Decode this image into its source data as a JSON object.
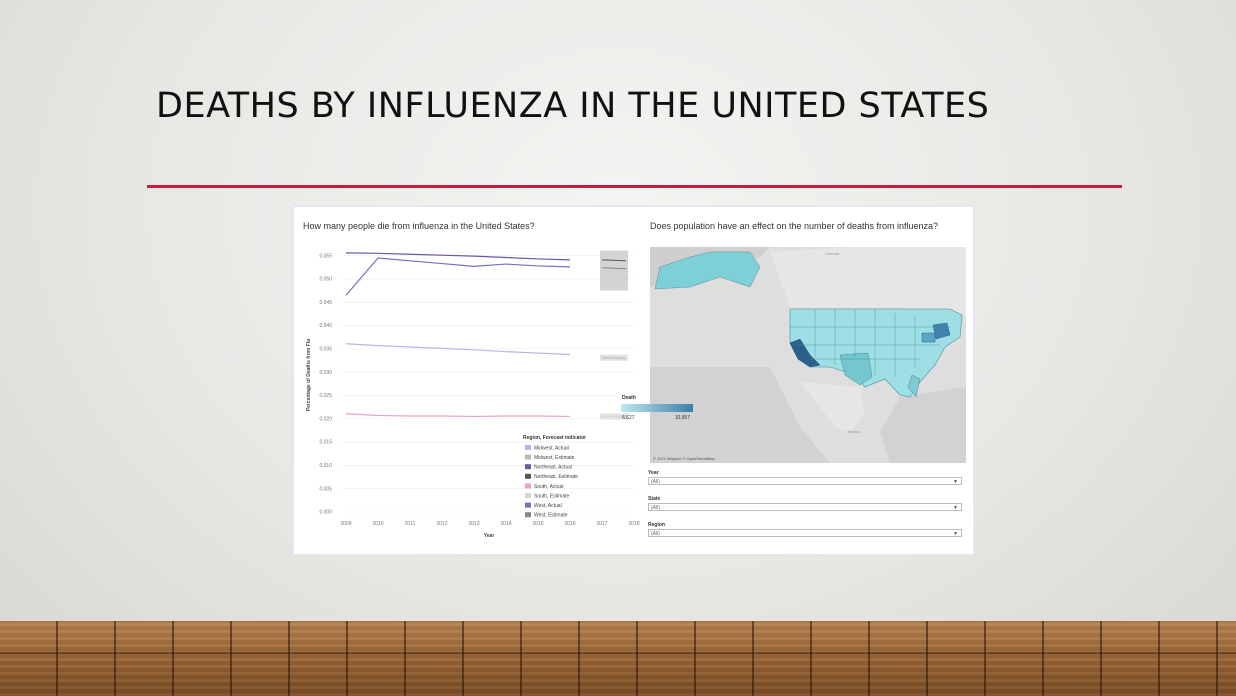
{
  "slide": {
    "title": "DEATHS BY INFLUENZA IN THE UNITED STATES",
    "accent_color": "#c31e3d"
  },
  "dashboard": {
    "line_chart_title": "How many people die from influenza in the United States?",
    "map_title": "Does population have an effect on the number of deaths from influenza?",
    "map_attribution": "© 2021 Mapbox © OpenStreetMap",
    "map_labels": {
      "canada": "Canada",
      "mexico": "Mexico"
    },
    "death_legend": {
      "title": "Death",
      "min": "6,627",
      "max": "10,957",
      "low_color": "#bfe8ee",
      "high_color": "#3a7fa8"
    },
    "filters": [
      {
        "label": "Year",
        "value": "(All)"
      },
      {
        "label": "State",
        "value": "(All)"
      },
      {
        "label": "Region",
        "value": "(All)"
      }
    ]
  },
  "chart_data": {
    "type": "line",
    "title": "How many people die from influenza in the United States?",
    "xlabel": "Year",
    "ylabel": "Percentage of Deaths from Flu",
    "x": [
      2009,
      2010,
      2011,
      2012,
      2013,
      2014,
      2015,
      2016
    ],
    "x_ticks": [
      "2009",
      "2010",
      "2011",
      "2012",
      "2013",
      "2014",
      "2015",
      "2016",
      "2017",
      "2018"
    ],
    "y_ticks": [
      "0.055",
      "0.050",
      "0.045",
      "0.040",
      "0.035",
      "0.030",
      "0.025",
      "0.020",
      "0.015",
      "0.010",
      "0.005",
      "0.000"
    ],
    "ylim": [
      0,
      0.056
    ],
    "legend_title": "Region, Forecast indicator",
    "legend": [
      {
        "name": "Midwest, Actual",
        "color": "#b9b4e6"
      },
      {
        "name": "Midwest, Estimate",
        "color": "#b9b9b9"
      },
      {
        "name": "Northeast, Actual",
        "color": "#6f54a3"
      },
      {
        "name": "Northeast, Estimate",
        "color": "#555555"
      },
      {
        "name": "South, Actual",
        "color": "#e5a2cd"
      },
      {
        "name": "South, Estimate",
        "color": "#d6d6d6"
      },
      {
        "name": "West, Actual",
        "color": "#7b6cc4"
      },
      {
        "name": "West, Estimate",
        "color": "#888888"
      }
    ],
    "series": [
      {
        "name": "Northeast, Actual",
        "color": "#6f54a3",
        "values": [
          0.0556,
          0.0555,
          0.0553,
          0.0551,
          0.0549,
          0.0546,
          0.0543,
          0.0541
        ]
      },
      {
        "name": "West, Actual",
        "color": "#7b6cc4",
        "values": [
          0.0465,
          0.0545,
          0.0539,
          0.0533,
          0.0527,
          0.0532,
          0.0528,
          0.0526
        ]
      },
      {
        "name": "Midwest, Actual",
        "color": "#b9b4e6",
        "values": [
          0.0361,
          0.0357,
          0.0354,
          0.0351,
          0.0348,
          0.0344,
          0.0341,
          0.0338
        ]
      },
      {
        "name": "South, Actual",
        "color": "#e5a2cd",
        "values": [
          0.0211,
          0.0207,
          0.0206,
          0.0206,
          0.0205,
          0.0206,
          0.0206,
          0.0205
        ]
      }
    ],
    "forecast": [
      {
        "name": "Northeast, Estimate",
        "color": "#555555",
        "values": [
          0.0541,
          0.0539
        ]
      },
      {
        "name": "West, Estimate",
        "color": "#888888",
        "values": [
          0.0524,
          0.0522
        ]
      },
      {
        "name": "Midwest, Estimate",
        "color": "#b9b9b9",
        "values": [
          0.0331,
          0.033
        ]
      },
      {
        "name": "South, Estimate",
        "color": "#d6d6d6",
        "values": [
          0.0205,
          0.0205
        ]
      }
    ],
    "forecast_x": [
      2017,
      2018
    ]
  }
}
